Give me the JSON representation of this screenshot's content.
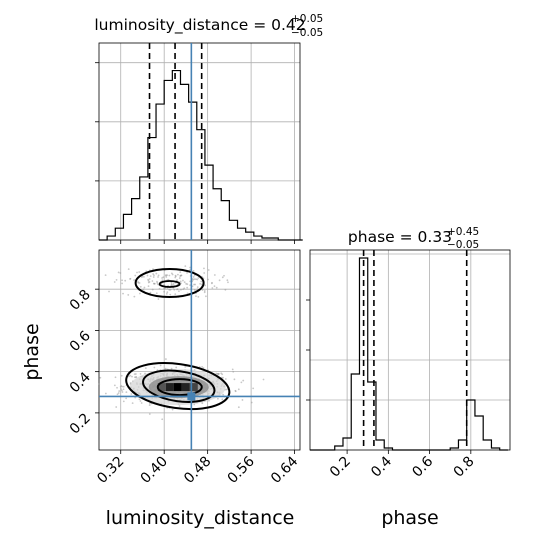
{
  "figure": {
    "type": "corner-plot"
  },
  "chart_data": [
    {
      "panel": "luminosity_distance-marginal",
      "type": "histogram",
      "title_main": "luminosity_distance = 0.42",
      "title_sup": "+0.05",
      "title_sub": "−0.05",
      "xlim": [
        0.28,
        0.65
      ],
      "ylim": [
        0,
        1.0
      ],
      "bin_edges": [
        0.28,
        0.295,
        0.31,
        0.325,
        0.34,
        0.355,
        0.37,
        0.385,
        0.4,
        0.415,
        0.43,
        0.445,
        0.46,
        0.475,
        0.49,
        0.505,
        0.52,
        0.535,
        0.55,
        0.565,
        0.58,
        0.595,
        0.61,
        0.625,
        0.64,
        0.655
      ],
      "counts": [
        0.0,
        0.02,
        0.06,
        0.13,
        0.21,
        0.32,
        0.52,
        0.69,
        0.81,
        0.86,
        0.79,
        0.7,
        0.56,
        0.38,
        0.26,
        0.2,
        0.1,
        0.06,
        0.04,
        0.02,
        0.01,
        0.01,
        0.0,
        0.0,
        0.0
      ],
      "quantiles": [
        0.373,
        0.42,
        0.469
      ],
      "truth": 0.45
    },
    {
      "panel": "phase-marginal",
      "type": "histogram",
      "title_main": "phase = 0.33",
      "title_sup": "+0.45",
      "title_sub": "−0.05",
      "xlim": [
        0.02,
        0.99
      ],
      "ylim": [
        0,
        1.0
      ],
      "bin_edges": [
        0.02,
        0.06,
        0.1,
        0.14,
        0.18,
        0.22,
        0.26,
        0.3,
        0.34,
        0.38,
        0.42,
        0.46,
        0.5,
        0.54,
        0.58,
        0.62,
        0.66,
        0.7,
        0.74,
        0.78,
        0.82,
        0.86,
        0.9,
        0.94,
        0.98
      ],
      "counts": [
        0.0,
        0.0,
        0.0,
        0.02,
        0.06,
        0.38,
        0.96,
        0.34,
        0.05,
        0.01,
        0.0,
        0.0,
        0.0,
        0.0,
        0.0,
        0.0,
        0.0,
        0.01,
        0.05,
        0.25,
        0.17,
        0.05,
        0.01,
        0.0
      ],
      "quantiles": [
        0.28,
        0.33,
        0.78
      ],
      "xticks": [
        "0.2",
        "0.4",
        "0.6",
        "0.8"
      ],
      "xlabel": "phase"
    },
    {
      "panel": "luminosity_distance-vs-phase",
      "type": "scatter-density",
      "xlim": [
        0.28,
        0.65
      ],
      "ylim": [
        0.02,
        0.99
      ],
      "xticks": [
        "0.32",
        "0.40",
        "0.48",
        "0.56",
        "0.64"
      ],
      "yticks": [
        "0.2",
        "0.4",
        "0.6",
        "0.8"
      ],
      "xlabel": "luminosity_distance",
      "ylabel": "phase",
      "truth": [
        0.45,
        0.28
      ],
      "clusters": [
        {
          "center": [
            0.425,
            0.33
          ],
          "spread": [
            0.05,
            0.04
          ],
          "weight": 0.78
        },
        {
          "center": [
            0.41,
            0.83
          ],
          "spread": [
            0.045,
            0.035
          ],
          "weight": 0.22
        }
      ]
    }
  ],
  "colors": {
    "hist": "#000000",
    "truth": "#4682b4",
    "grid": "#b0b0b0",
    "points": "#9a9a9a"
  }
}
